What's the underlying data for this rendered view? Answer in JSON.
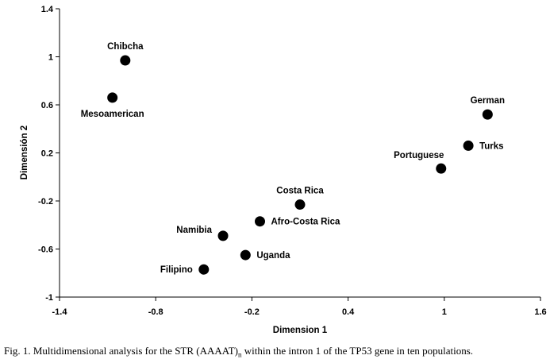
{
  "chart_data": {
    "type": "scatter",
    "xlabel": "Dimension 1",
    "ylabel": "Dimensión 2",
    "xlim": [
      -1.4,
      1.6
    ],
    "ylim": [
      -1,
      1.4
    ],
    "xticks": [
      "-1.4",
      "-0.8",
      "-0.2",
      "0.4",
      "1",
      "1.6"
    ],
    "yticks": [
      "1.4",
      "1",
      "0.6",
      "0.2",
      "-0.2",
      "-0.6",
      "-1"
    ],
    "points": [
      {
        "label": "Chibcha",
        "x": -0.99,
        "y": 0.97,
        "label_pos": "above"
      },
      {
        "label": "Mesoamerican",
        "x": -1.07,
        "y": 0.66,
        "label_pos": "below"
      },
      {
        "label": "German",
        "x": 1.27,
        "y": 0.52,
        "label_pos": "above"
      },
      {
        "label": "Turks",
        "x": 1.15,
        "y": 0.26,
        "label_pos": "right"
      },
      {
        "label": "Portuguese",
        "x": 0.98,
        "y": 0.07,
        "label_pos": "above-left"
      },
      {
        "label": "Costa Rica",
        "x": 0.1,
        "y": -0.23,
        "label_pos": "above"
      },
      {
        "label": "Afro-Costa Rica",
        "x": -0.15,
        "y": -0.37,
        "label_pos": "right"
      },
      {
        "label": "Namibia",
        "x": -0.38,
        "y": -0.49,
        "label_pos": "left"
      },
      {
        "label": "Uganda",
        "x": -0.24,
        "y": -0.65,
        "label_pos": "right"
      },
      {
        "label": "Filipino",
        "x": -0.5,
        "y": -0.77,
        "label_pos": "left"
      }
    ]
  },
  "caption": {
    "prefix": "Fig. 1. Multidimensional analysis for the STR (AAAAT)",
    "subscript": "n",
    "suffix": " within the intron 1 of the TP53 gene in ten populations."
  }
}
